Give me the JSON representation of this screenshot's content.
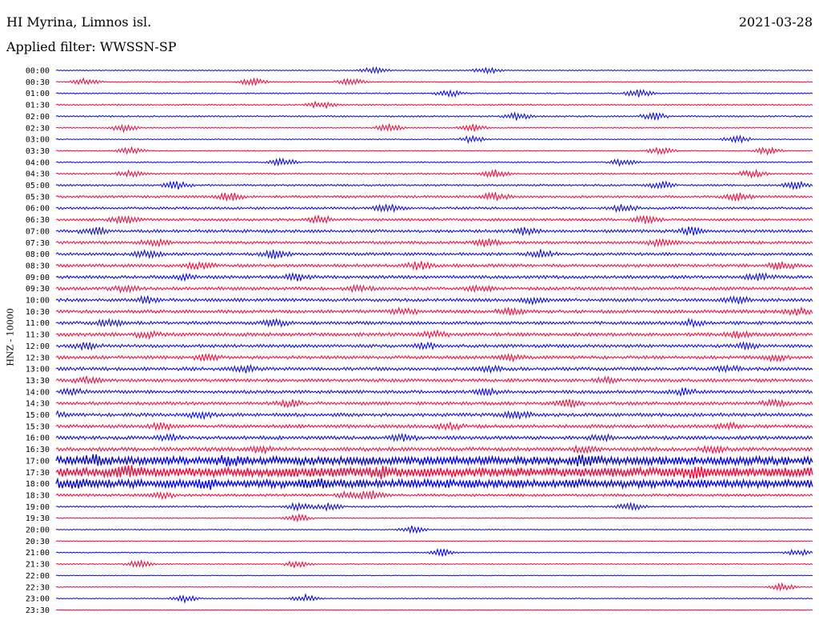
{
  "header": {
    "station": "HI Myrina, Limnos isl.",
    "date": "2021-03-28",
    "filter": "Applied filter: WWSSN-SP"
  },
  "chart_data": {
    "type": "line",
    "ylabel": "HNZ - 10000",
    "colors": {
      "even_rows": "#0000ff",
      "odd_rows": "#ff0033"
    },
    "rows": [
      {
        "label": "00:00",
        "amp": 0.6,
        "events": [
          0.42,
          0.57
        ]
      },
      {
        "label": "00:30",
        "amp": 0.6,
        "events": [
          0.04,
          0.26,
          0.39
        ]
      },
      {
        "label": "01:00",
        "amp": 0.8,
        "events": [
          0.52,
          0.77
        ]
      },
      {
        "label": "01:30",
        "amp": 0.9,
        "events": [
          0.35
        ]
      },
      {
        "label": "02:00",
        "amp": 1.0,
        "events": [
          0.61,
          0.79
        ]
      },
      {
        "label": "02:30",
        "amp": 0.7,
        "events": [
          0.09,
          0.44,
          0.55
        ]
      },
      {
        "label": "03:00",
        "amp": 0.6,
        "events": [
          0.55,
          0.9
        ]
      },
      {
        "label": "03:30",
        "amp": 0.6,
        "events": [
          0.1,
          0.8,
          0.94
        ]
      },
      {
        "label": "04:00",
        "amp": 0.8,
        "events": [
          0.3,
          0.75
        ]
      },
      {
        "label": "04:30",
        "amp": 1.0,
        "events": [
          0.1,
          0.58,
          0.92
        ]
      },
      {
        "label": "05:00",
        "amp": 1.2,
        "events": [
          0.16,
          0.8,
          0.98
        ]
      },
      {
        "label": "05:30",
        "amp": 1.5,
        "events": [
          0.23,
          0.58,
          0.9
        ]
      },
      {
        "label": "06:00",
        "amp": 1.5,
        "events": [
          0.44,
          0.75
        ]
      },
      {
        "label": "06:30",
        "amp": 1.6,
        "events": [
          0.09,
          0.35,
          0.78
        ]
      },
      {
        "label": "07:00",
        "amp": 1.9,
        "events": [
          0.05,
          0.62,
          0.84
        ]
      },
      {
        "label": "07:30",
        "amp": 1.8,
        "events": [
          0.13,
          0.57,
          0.8
        ]
      },
      {
        "label": "08:00",
        "amp": 1.8,
        "events": [
          0.12,
          0.29,
          0.64
        ]
      },
      {
        "label": "08:30",
        "amp": 1.9,
        "events": [
          0.19,
          0.48,
          0.96
        ]
      },
      {
        "label": "09:00",
        "amp": 2.0,
        "events": [
          0.17,
          0.32,
          0.93
        ]
      },
      {
        "label": "09:30",
        "amp": 2.0,
        "events": [
          0.09,
          0.4,
          0.56
        ]
      },
      {
        "label": "10:00",
        "amp": 2.0,
        "events": [
          0.12,
          0.63,
          0.9
        ]
      },
      {
        "label": "10:30",
        "amp": 2.1,
        "events": [
          0.46,
          0.6,
          0.98
        ]
      },
      {
        "label": "11:00",
        "amp": 2.0,
        "events": [
          0.07,
          0.29,
          0.84
        ]
      },
      {
        "label": "11:30",
        "amp": 2.2,
        "events": [
          0.12,
          0.5,
          0.9
        ]
      },
      {
        "label": "12:00",
        "amp": 2.0,
        "events": [
          0.04,
          0.49,
          0.91
        ]
      },
      {
        "label": "12:30",
        "amp": 2.0,
        "events": [
          0.2,
          0.6,
          0.95
        ]
      },
      {
        "label": "13:00",
        "amp": 2.1,
        "events": [
          0.25,
          0.57,
          0.89
        ]
      },
      {
        "label": "13:30",
        "amp": 2.0,
        "events": [
          0.04,
          0.73
        ]
      },
      {
        "label": "14:00",
        "amp": 2.0,
        "events": [
          0.02,
          0.57,
          0.83
        ]
      },
      {
        "label": "14:30",
        "amp": 2.0,
        "events": [
          0.31,
          0.68,
          0.95
        ]
      },
      {
        "label": "15:00",
        "amp": 2.2,
        "events": [
          0.0,
          0.19,
          0.61
        ]
      },
      {
        "label": "15:30",
        "amp": 2.1,
        "events": [
          0.14,
          0.52,
          0.89
        ]
      },
      {
        "label": "16:00",
        "amp": 2.2,
        "events": [
          0.15,
          0.46,
          0.72
        ]
      },
      {
        "label": "16:30",
        "amp": 2.4,
        "events": [
          0.27,
          0.7,
          0.87
        ]
      },
      {
        "label": "17:00",
        "amp": 5.0,
        "events": [
          0.05,
          0.23,
          0.7
        ]
      },
      {
        "label": "17:30",
        "amp": 5.6,
        "events": [
          0.1,
          0.43,
          0.84
        ]
      },
      {
        "label": "18:00",
        "amp": 5.0,
        "events": [
          0.02,
          0.2,
          0.35
        ]
      },
      {
        "label": "18:30",
        "amp": 1.6,
        "events": [
          0.14,
          0.39,
          0.42
        ]
      },
      {
        "label": "19:00",
        "amp": 1.0,
        "events": [
          0.32,
          0.36,
          0.76
        ]
      },
      {
        "label": "19:30",
        "amp": 0.6,
        "events": [
          0.32
        ]
      },
      {
        "label": "20:00",
        "amp": 0.6,
        "events": [
          0.47
        ]
      },
      {
        "label": "20:30",
        "amp": 0.5,
        "events": []
      },
      {
        "label": "21:00",
        "amp": 0.6,
        "events": [
          0.51,
          0.98
        ]
      },
      {
        "label": "21:30",
        "amp": 0.7,
        "events": [
          0.11,
          0.32
        ]
      },
      {
        "label": "22:00",
        "amp": 0.5,
        "events": []
      },
      {
        "label": "22:30",
        "amp": 0.5,
        "events": [
          0.96
        ]
      },
      {
        "label": "23:00",
        "amp": 0.6,
        "events": [
          0.17,
          0.33
        ]
      },
      {
        "label": "23:30",
        "amp": 0.4,
        "events": []
      }
    ]
  }
}
